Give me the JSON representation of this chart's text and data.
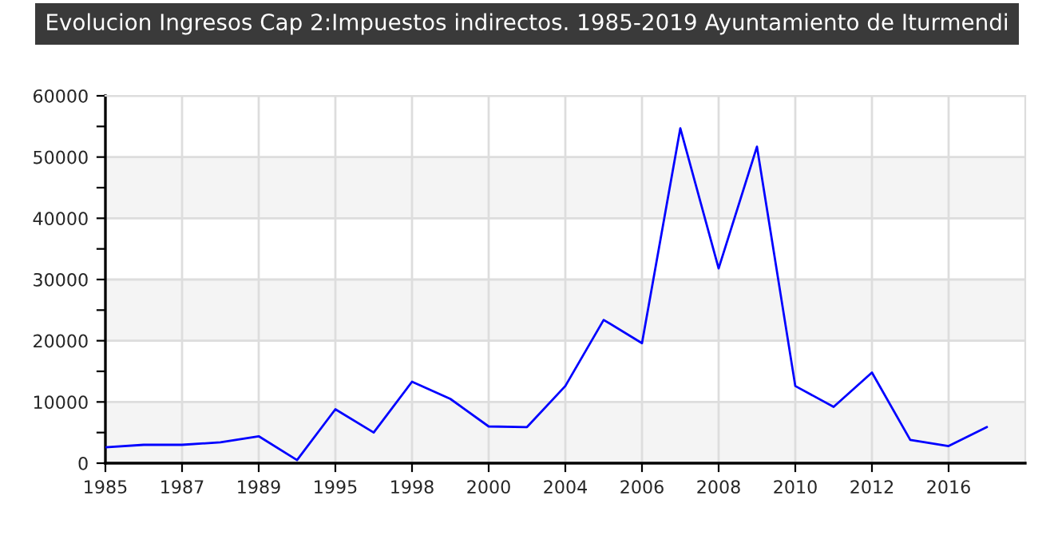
{
  "chart_data": {
    "type": "line",
    "title": "Evolucion Ingresos Cap 2:Impuestos indirectos. 1985-2019 Ayuntamiento de Iturmendi",
    "categories": [
      "1985",
      null,
      "1987",
      null,
      "1989",
      null,
      "1995",
      null,
      "1998",
      null,
      "2000",
      null,
      "2004",
      null,
      "2006",
      null,
      "2008",
      null,
      "2010",
      null,
      "2012",
      null,
      "2016",
      null
    ],
    "series": [
      {
        "color": "#0000ff",
        "values": [
          2600,
          3000,
          3000,
          3400,
          4400,
          500,
          8800,
          5000,
          13300,
          10500,
          6000,
          5900,
          12600,
          23400,
          19600,
          54700,
          31800,
          51700,
          12600,
          9200,
          14800,
          3800,
          2800,
          5900
        ]
      }
    ],
    "ylim": [
      0,
      60000
    ],
    "yticks": [
      0,
      {
        "value": 5000,
        "label": null
      },
      10000,
      {
        "value": 15000,
        "label": null
      },
      20000,
      {
        "value": 25000,
        "label": null
      },
      30000,
      {
        "value": 35000,
        "label": null
      },
      40000,
      {
        "value": 45000,
        "label": null
      },
      50000,
      {
        "value": 55000,
        "label": null
      },
      60000
    ],
    "bands": [
      {
        "axis": "y",
        "from": 0,
        "to": 10000,
        "color": "#f4f4f4"
      },
      {
        "axis": "y",
        "from": 20000,
        "to": 30000,
        "color": "#f4f4f4"
      },
      {
        "axis": "y",
        "from": 40000,
        "to": 50000,
        "color": "#f4f4f4"
      }
    ],
    "grid": true,
    "legend": false,
    "marker": "none",
    "line_style": "solid"
  }
}
